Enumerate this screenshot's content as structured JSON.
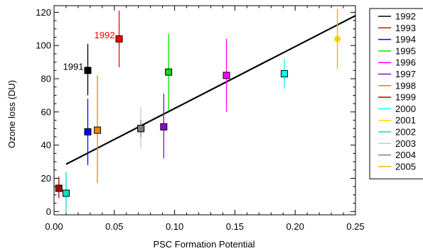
{
  "chart_data": {
    "type": "scatter",
    "title": "",
    "xlabel": "PSC Formation Potential",
    "ylabel": "Ozone loss (DU)",
    "xlim": [
      0,
      0.25
    ],
    "ylim": [
      -2,
      124
    ],
    "x_ticks": [
      0.0,
      0.05,
      0.1,
      0.15,
      0.2,
      0.25
    ],
    "x_tick_labels": [
      "0.00",
      "0.05",
      "0.10",
      "0.15",
      "0.20",
      "0.25"
    ],
    "y_ticks": [
      0,
      20,
      40,
      60,
      80,
      100,
      120
    ],
    "y_tick_labels": [
      "0",
      "20",
      "40",
      "60",
      "80",
      "100",
      "120"
    ],
    "grid": false,
    "legend_position": "outside-right",
    "series": [
      {
        "name": "1992",
        "color": "#000000",
        "marker": "square",
        "x": 0.028,
        "y": 85,
        "err_low": 70,
        "err_high": 101
      },
      {
        "name": "1993",
        "color": "#ff0000",
        "marker": "square",
        "x": 0.054,
        "y": 104,
        "err_low": 87,
        "err_high": 121
      },
      {
        "name": "1994",
        "color": "#0000ff",
        "marker": "square",
        "x": 0.028,
        "y": 48,
        "err_low": 28,
        "err_high": 68
      },
      {
        "name": "1995",
        "color": "#00e000",
        "marker": "square",
        "x": 0.095,
        "y": 84,
        "err_low": 61,
        "err_high": 107
      },
      {
        "name": "1996",
        "color": "#ff00ff",
        "marker": "square",
        "x": 0.143,
        "y": 82,
        "err_low": 60,
        "err_high": 104
      },
      {
        "name": "1997",
        "color": "#9400d3",
        "marker": "square",
        "x": 0.091,
        "y": 51,
        "err_low": 32,
        "err_high": 71
      },
      {
        "name": "1998",
        "color": "#ff7f00",
        "marker": "square",
        "x": 0.036,
        "y": 49,
        "err_low": 17,
        "err_high": 82
      },
      {
        "name": "1999",
        "color": "#aa0000",
        "marker": "square",
        "x": 0.004,
        "y": 14,
        "err_low": 8,
        "err_high": 21
      },
      {
        "name": "2000",
        "color": "#00ffff",
        "marker": "square",
        "x": 0.191,
        "y": 83,
        "err_low": 74,
        "err_high": 92
      },
      {
        "name": "2001",
        "color": "#ffd700",
        "marker": "circle",
        "x": 0.235,
        "y": 104,
        "err_low": 86,
        "err_high": 122
      },
      {
        "name": "2002",
        "color": "#00e0c0",
        "marker": "square",
        "x": 0.01,
        "y": 11,
        "err_low": -1,
        "err_high": 24
      },
      {
        "name": "2003",
        "color": "#c8c8c8",
        "marker": "square",
        "x": 0.072,
        "y": 50,
        "err_low": 38,
        "err_high": 63
      },
      {
        "name": "2004",
        "color": "#7f7f7f",
        "marker": "square",
        "x": 0.072,
        "y": 50,
        "err_low": 45,
        "err_high": 55
      },
      {
        "name": "2005",
        "color": "#ffb000",
        "marker": "none",
        "x": 0.235,
        "y": 104,
        "err_low": 86,
        "err_high": 122
      }
    ],
    "fit_line": {
      "color": "#000000",
      "x": [
        0.01,
        0.25
      ],
      "y": [
        28.5,
        118
      ]
    },
    "annotations": [
      {
        "text": "1991",
        "x": 0.028,
        "y": 85,
        "color": "#000000",
        "anchor": "end"
      },
      {
        "text": "1992",
        "x": 0.054,
        "y": 104,
        "color": "#ff0000",
        "anchor": "end"
      }
    ]
  }
}
